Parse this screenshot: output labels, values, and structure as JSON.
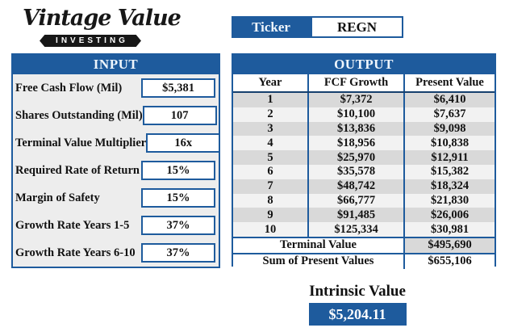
{
  "logo": {
    "title": "Vintage Value",
    "subtitle": "INVESTING"
  },
  "ticker": {
    "label": "Ticker",
    "value": "REGN"
  },
  "input": {
    "header": "INPUT",
    "rows": [
      {
        "label": "Free Cash Flow (Mil)",
        "value": "$5,381"
      },
      {
        "label": "Shares Outstanding (Mil)",
        "value": "107"
      },
      {
        "label": "Terminal Value Multiplier",
        "value": "16x"
      },
      {
        "label": "Required Rate of Return",
        "value": "15%"
      },
      {
        "label": "Margin of Safety",
        "value": "15%"
      },
      {
        "label": "Growth Rate Years 1-5",
        "value": "37%"
      },
      {
        "label": "Growth Rate Years 6-10",
        "value": "37%"
      }
    ]
  },
  "output": {
    "header": "OUTPUT",
    "columns": [
      "Year",
      "FCF Growth",
      "Present Value"
    ],
    "rows": [
      [
        "1",
        "$7,372",
        "$6,410"
      ],
      [
        "2",
        "$10,100",
        "$7,637"
      ],
      [
        "3",
        "$13,836",
        "$9,098"
      ],
      [
        "4",
        "$18,956",
        "$10,838"
      ],
      [
        "5",
        "$25,970",
        "$12,911"
      ],
      [
        "6",
        "$35,578",
        "$15,382"
      ],
      [
        "7",
        "$48,742",
        "$18,324"
      ],
      [
        "8",
        "$66,777",
        "$21,830"
      ],
      [
        "9",
        "$91,485",
        "$26,006"
      ],
      [
        "10",
        "$125,334",
        "$30,981"
      ]
    ],
    "summary": [
      {
        "label": "Terminal Value",
        "value": "$495,690"
      },
      {
        "label": "Sum of Present Values",
        "value": "$655,106"
      }
    ]
  },
  "intrinsic": {
    "label": "Intrinsic Value",
    "value": "$5,204.11"
  },
  "colors": {
    "accent_blue": "#1e5b9d",
    "stripe_gray": "#d9d9d9",
    "panel_gray": "#ededed",
    "badge_black": "#171717"
  }
}
